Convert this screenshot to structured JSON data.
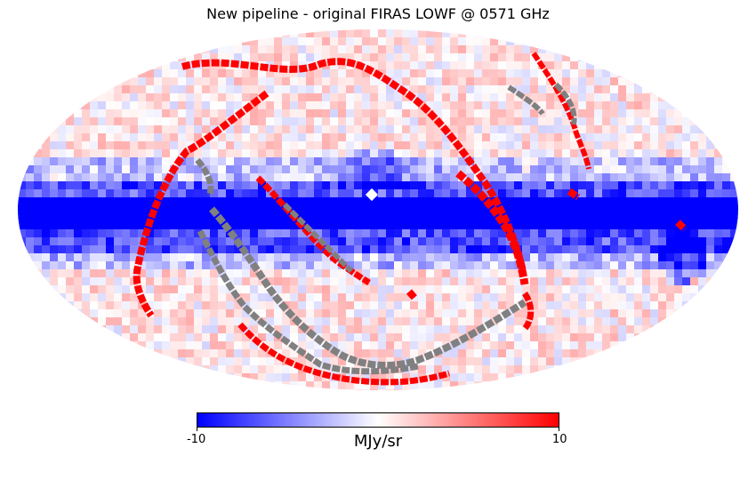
{
  "title": "New pipeline - original FIRAS LOWF @ 0571 GHz",
  "colorbar": {
    "min_label": "-10",
    "max_label": "10",
    "unit": "MJy/sr",
    "colors": {
      "low": "#0000ff",
      "mid": "#ffffff",
      "high": "#ff0000",
      "masked": "#808080"
    }
  },
  "chart_data": {
    "type": "heatmap",
    "projection": "mollweide",
    "title": "New pipeline - original FIRAS LOWF @ 0571 GHz",
    "colorbar_label": "MJy/sr",
    "vmin": -10,
    "vmax": 10,
    "features": [
      "strong negative band along galactic plane (latitude ~0)",
      "mild negative values near plane, mostly small positive residuals elsewhere",
      "saturated positive (red) stripes along scan/ecliptic tracks",
      "masked (gray) pixels along tracks in southern hemisphere"
    ]
  }
}
